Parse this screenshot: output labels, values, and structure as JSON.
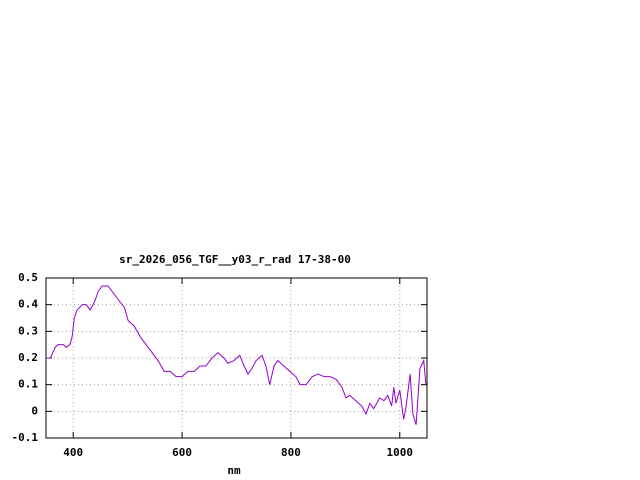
{
  "chart_data": {
    "type": "line",
    "title": "sr_2026_056_TGF__y03_r_rad 17-38-00",
    "xlabel": "nm",
    "xlim": [
      350,
      1050
    ],
    "xticks": [
      400,
      600,
      800,
      1000
    ],
    "ylim": [
      -0.1,
      0.5
    ],
    "yticks": [
      -0.1,
      0,
      0.1,
      0.2,
      0.3,
      0.4,
      0.5
    ],
    "grid": true,
    "series": [
      {
        "color": "#9400d3",
        "x": [
          350,
          358,
          367,
          372,
          382,
          387,
          394,
          398,
          402,
          407,
          417,
          424,
          431,
          439,
          446,
          453,
          464,
          475,
          486,
          494,
          501,
          512,
          523,
          534,
          545,
          556,
          567,
          578,
          589,
          600,
          611,
          622,
          633,
          644,
          655,
          666,
          677,
          684,
          695,
          706,
          714,
          721,
          728,
          736,
          747,
          754,
          761,
          769,
          776,
          787,
          798,
          809,
          817,
          828,
          839,
          850,
          861,
          872,
          883,
          894,
          901,
          908,
          919,
          930,
          938,
          945,
          952,
          963,
          971,
          978,
          985,
          989,
          993,
          1000,
          1007,
          1011,
          1019,
          1024,
          1030,
          1037,
          1044,
          1048
        ],
        "values": [
          0.2,
          0.2,
          0.24,
          0.25,
          0.25,
          0.24,
          0.25,
          0.28,
          0.35,
          0.38,
          0.4,
          0.4,
          0.38,
          0.41,
          0.45,
          0.47,
          0.47,
          0.44,
          0.41,
          0.39,
          0.34,
          0.32,
          0.28,
          0.25,
          0.22,
          0.19,
          0.15,
          0.15,
          0.13,
          0.13,
          0.15,
          0.15,
          0.17,
          0.17,
          0.2,
          0.22,
          0.2,
          0.18,
          0.19,
          0.21,
          0.17,
          0.14,
          0.16,
          0.19,
          0.21,
          0.17,
          0.1,
          0.17,
          0.19,
          0.17,
          0.15,
          0.13,
          0.1,
          0.1,
          0.13,
          0.14,
          0.13,
          0.13,
          0.12,
          0.09,
          0.05,
          0.06,
          0.04,
          0.02,
          -0.01,
          0.03,
          0.01,
          0.05,
          0.04,
          0.06,
          0.02,
          0.09,
          0.03,
          0.08,
          -0.03,
          0.01,
          0.14,
          -0.01,
          -0.05,
          0.16,
          0.19,
          0.1
        ]
      }
    ]
  }
}
